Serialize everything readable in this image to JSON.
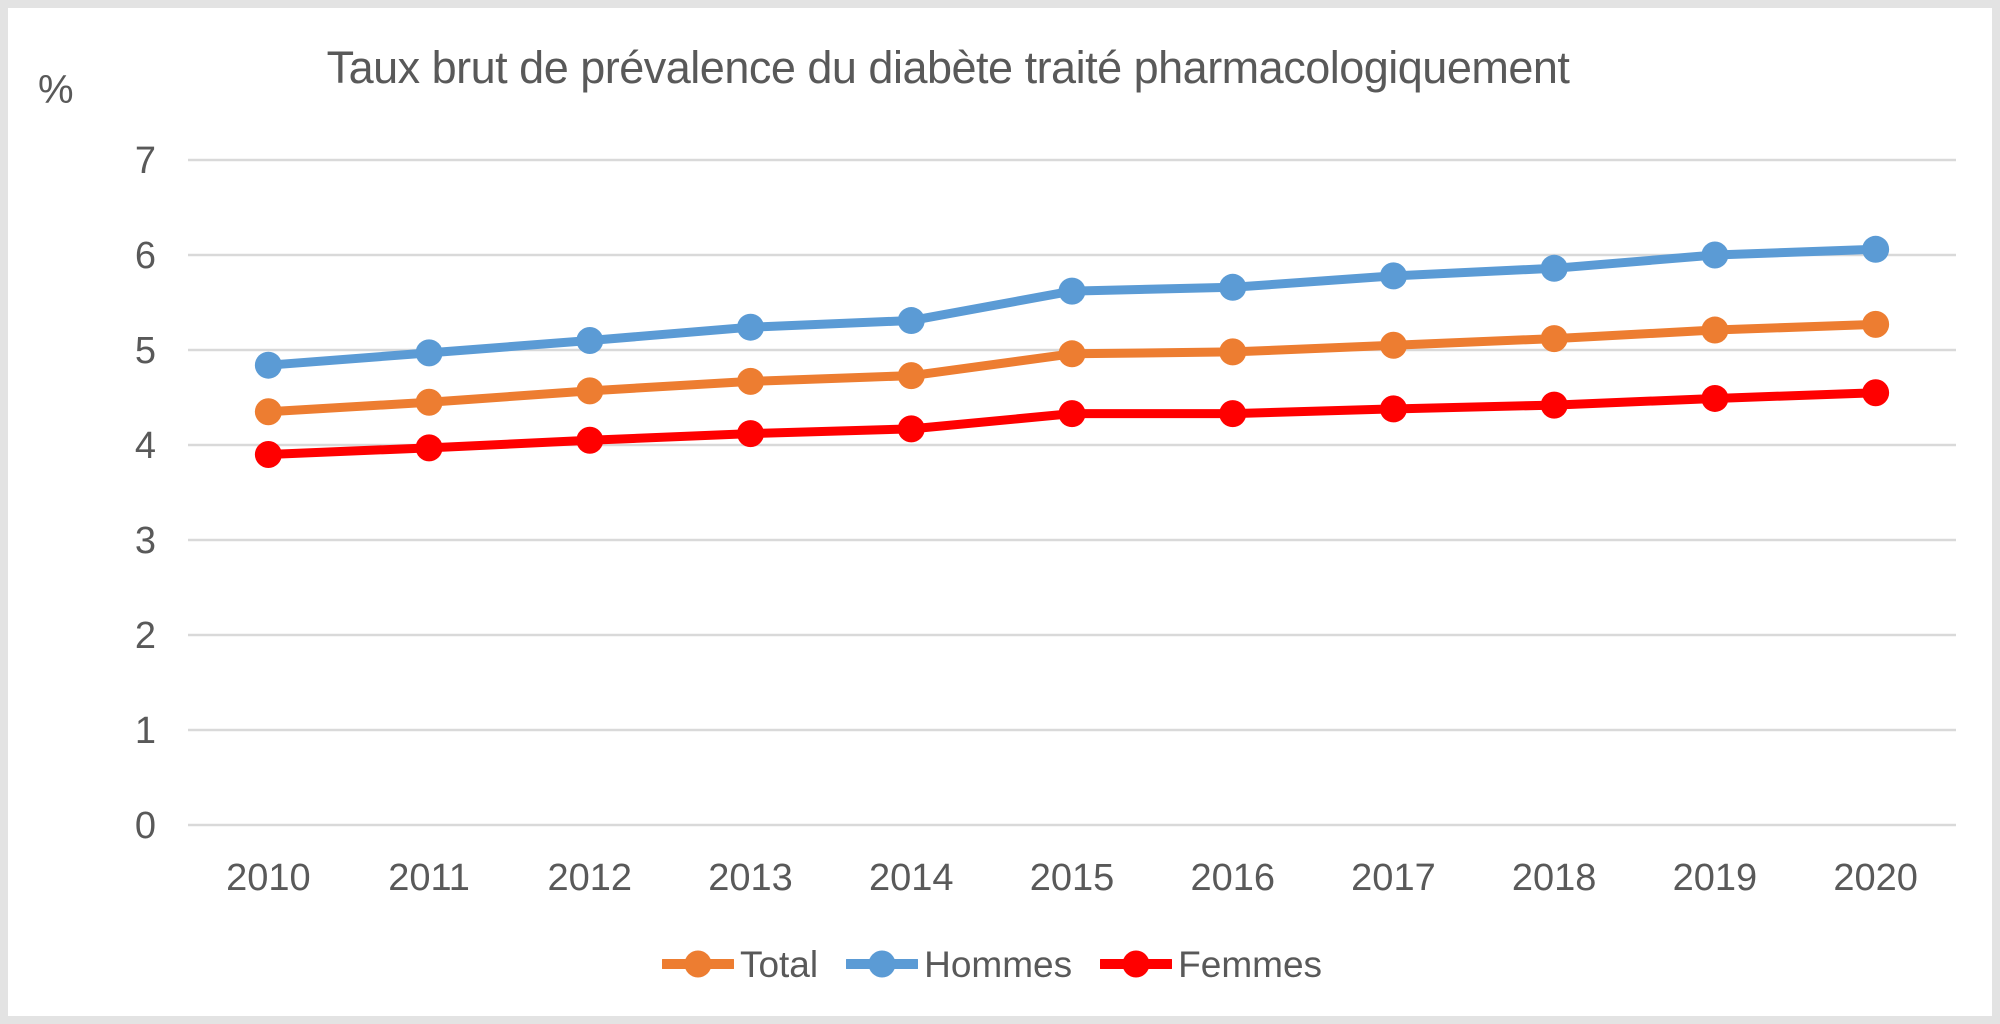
{
  "frame": {
    "border_color": "#e3e3e3",
    "background": "#ffffff"
  },
  "chart_data": {
    "type": "line",
    "title": "Taux brut de prévalence du diabète traité pharmacologiquement",
    "xlabel": "",
    "ylabel": "%",
    "x": [
      "2010",
      "2011",
      "2012",
      "2013",
      "2014",
      "2015",
      "2016",
      "2017",
      "2018",
      "2019",
      "2020"
    ],
    "series": [
      {
        "name": "Total",
        "color": "#ED7D31",
        "values": [
          4.35,
          4.45,
          4.57,
          4.67,
          4.73,
          4.96,
          4.98,
          5.05,
          5.12,
          5.21,
          5.27
        ]
      },
      {
        "name": "Hommes",
        "color": "#5B9BD5",
        "values": [
          4.84,
          4.97,
          5.1,
          5.24,
          5.31,
          5.62,
          5.66,
          5.78,
          5.86,
          6.0,
          6.06
        ]
      },
      {
        "name": "Femmes",
        "color": "#FF0000",
        "values": [
          3.9,
          3.97,
          4.05,
          4.12,
          4.17,
          4.33,
          4.33,
          4.38,
          4.42,
          4.49,
          4.55
        ]
      }
    ],
    "ylim": [
      0,
      7
    ],
    "yticks": [
      0,
      1,
      2,
      3,
      4,
      5,
      6,
      7
    ],
    "grid": true,
    "gridline_color": "#D9D9D9",
    "text_color": "#595959",
    "legend_position": "bottom",
    "legend_labels": [
      "Total",
      "Hommes",
      "Femmes"
    ]
  }
}
